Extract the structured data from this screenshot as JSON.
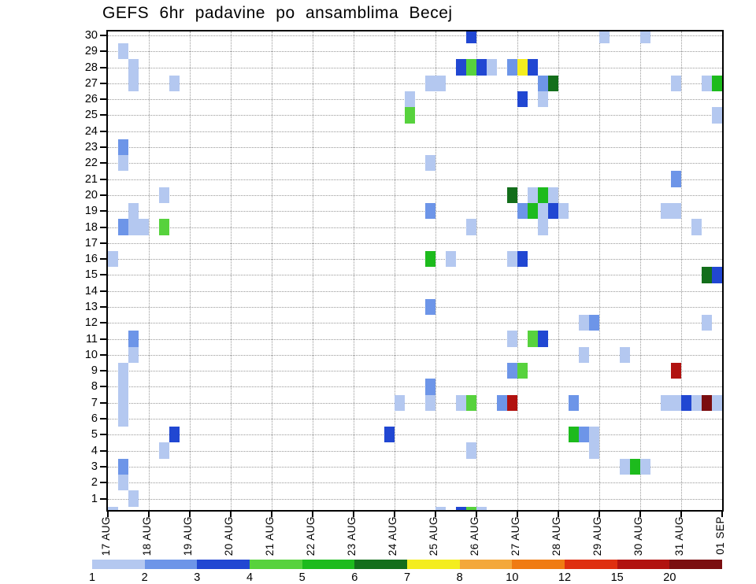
{
  "title": "GEFS 6hr padavine po ansamblima Becej",
  "colors": {
    "axis": "#000000",
    "grid": "#999999",
    "background": "#ffffff"
  },
  "chart_data": {
    "type": "heatmap",
    "title": "GEFS 6hr padavine po ansamblima Becej",
    "xlabel": "",
    "ylabel": "",
    "x_tick_labels": [
      "17 AUG",
      "18 AUG",
      "19 AUG",
      "20 AUG",
      "21 AUG",
      "22 AUG",
      "23 AUG",
      "24 AUG",
      "25 AUG",
      "26 AUG",
      "27 AUG",
      "28 AUG",
      "29 AUG",
      "30 AUG",
      "31 AUG",
      "01 SEP"
    ],
    "y_tick_labels": [
      "30",
      "29",
      "28",
      "27",
      "26",
      "25",
      "24",
      "23",
      "22",
      "21",
      "20",
      "19",
      "18",
      "17",
      "16",
      "15",
      "14",
      "13",
      "12",
      "11",
      "10",
      "9",
      "8",
      "7",
      "6",
      "5",
      "4",
      "3",
      "2",
      "1"
    ],
    "steps_per_day": 4,
    "n_cols": 60,
    "n_rows": 30,
    "grid": "dotted",
    "legend_position": "bottom",
    "colorbar_labels": [
      "1",
      "2",
      "3",
      "4",
      "5",
      "6",
      "7",
      "8",
      "10",
      "12",
      "15",
      "20"
    ],
    "colorbar_levels": [
      1,
      2,
      3,
      4,
      5,
      6,
      7,
      8,
      10,
      12,
      15,
      20
    ],
    "palette": {
      "1": "#b4c8f0",
      "2": "#6d95e8",
      "3": "#2147d2",
      "4": "#57d23d",
      "5": "#1dbb1d",
      "6": "#136e1b",
      "7": "#f4ed1f",
      "8": "#f4a83b",
      "10": "#f07b12",
      "12": "#df2f0f",
      "15": "#b11210",
      "20": "#7b0e10"
    },
    "cells_format": [
      "col_6hr_step_from_17AUG",
      "ensemble_member_row_0_means_below_axis_sliver",
      "precip_level"
    ],
    "cells": [
      [
        35,
        30,
        3
      ],
      [
        48,
        30,
        1
      ],
      [
        52,
        30,
        1
      ],
      [
        1,
        29,
        1
      ],
      [
        2,
        28,
        1
      ],
      [
        34,
        28,
        3
      ],
      [
        35,
        28,
        4
      ],
      [
        36,
        28,
        3
      ],
      [
        37,
        28,
        1
      ],
      [
        39,
        28,
        2
      ],
      [
        40,
        28,
        7
      ],
      [
        41,
        28,
        3
      ],
      [
        2,
        27,
        1
      ],
      [
        6,
        27,
        1
      ],
      [
        31,
        27,
        1
      ],
      [
        32,
        27,
        1
      ],
      [
        42,
        27,
        2
      ],
      [
        43,
        27,
        6
      ],
      [
        55,
        27,
        1
      ],
      [
        58,
        27,
        1
      ],
      [
        59,
        27,
        5
      ],
      [
        29,
        26,
        1
      ],
      [
        40,
        26,
        3
      ],
      [
        42,
        26,
        1
      ],
      [
        29,
        25,
        4
      ],
      [
        59,
        25,
        1
      ],
      [
        1,
        23,
        2
      ],
      [
        1,
        22,
        1
      ],
      [
        31,
        22,
        1
      ],
      [
        55,
        21,
        2
      ],
      [
        5,
        20,
        1
      ],
      [
        39,
        20,
        6
      ],
      [
        41,
        20,
        1
      ],
      [
        42,
        20,
        5
      ],
      [
        43,
        20,
        1
      ],
      [
        2,
        19,
        1
      ],
      [
        31,
        19,
        2
      ],
      [
        40,
        19,
        2
      ],
      [
        41,
        19,
        5
      ],
      [
        42,
        19,
        1
      ],
      [
        43,
        19,
        3
      ],
      [
        44,
        19,
        1
      ],
      [
        54,
        19,
        1
      ],
      [
        55,
        19,
        1
      ],
      [
        1,
        18,
        2
      ],
      [
        2,
        18,
        1
      ],
      [
        3,
        18,
        1
      ],
      [
        5,
        18,
        4
      ],
      [
        35,
        18,
        1
      ],
      [
        42,
        18,
        1
      ],
      [
        57,
        18,
        1
      ],
      [
        0,
        16,
        1
      ],
      [
        31,
        16,
        5
      ],
      [
        33,
        16,
        1
      ],
      [
        39,
        16,
        1
      ],
      [
        40,
        16,
        3
      ],
      [
        58,
        15,
        6
      ],
      [
        59,
        15,
        3
      ],
      [
        31,
        13,
        2
      ],
      [
        46,
        12,
        1
      ],
      [
        47,
        12,
        2
      ],
      [
        58,
        12,
        1
      ],
      [
        2,
        11,
        2
      ],
      [
        39,
        11,
        1
      ],
      [
        41,
        11,
        4
      ],
      [
        42,
        11,
        3
      ],
      [
        2,
        10,
        1
      ],
      [
        46,
        10,
        1
      ],
      [
        50,
        10,
        1
      ],
      [
        1,
        9,
        1
      ],
      [
        39,
        9,
        2
      ],
      [
        40,
        9,
        4
      ],
      [
        55,
        9,
        15
      ],
      [
        1,
        8,
        1
      ],
      [
        31,
        8,
        2
      ],
      [
        1,
        7,
        1
      ],
      [
        28,
        7,
        1
      ],
      [
        31,
        7,
        1
      ],
      [
        34,
        7,
        1
      ],
      [
        35,
        7,
        4
      ],
      [
        38,
        7,
        2
      ],
      [
        39,
        7,
        15
      ],
      [
        45,
        7,
        2
      ],
      [
        54,
        7,
        1
      ],
      [
        55,
        7,
        1
      ],
      [
        56,
        7,
        3
      ],
      [
        57,
        7,
        1
      ],
      [
        58,
        7,
        20
      ],
      [
        59,
        7,
        1
      ],
      [
        1,
        6,
        1
      ],
      [
        6,
        5,
        3
      ],
      [
        27,
        5,
        3
      ],
      [
        45,
        5,
        5
      ],
      [
        46,
        5,
        2
      ],
      [
        47,
        5,
        1
      ],
      [
        5,
        4,
        1
      ],
      [
        35,
        4,
        1
      ],
      [
        47,
        4,
        1
      ],
      [
        1,
        3,
        2
      ],
      [
        50,
        3,
        1
      ],
      [
        51,
        3,
        5
      ],
      [
        52,
        3,
        1
      ],
      [
        1,
        2,
        1
      ],
      [
        2,
        1,
        1
      ],
      [
        0,
        0,
        1
      ],
      [
        32,
        0,
        1
      ],
      [
        34,
        0,
        3
      ],
      [
        35,
        0,
        4
      ],
      [
        36,
        0,
        1
      ]
    ]
  }
}
